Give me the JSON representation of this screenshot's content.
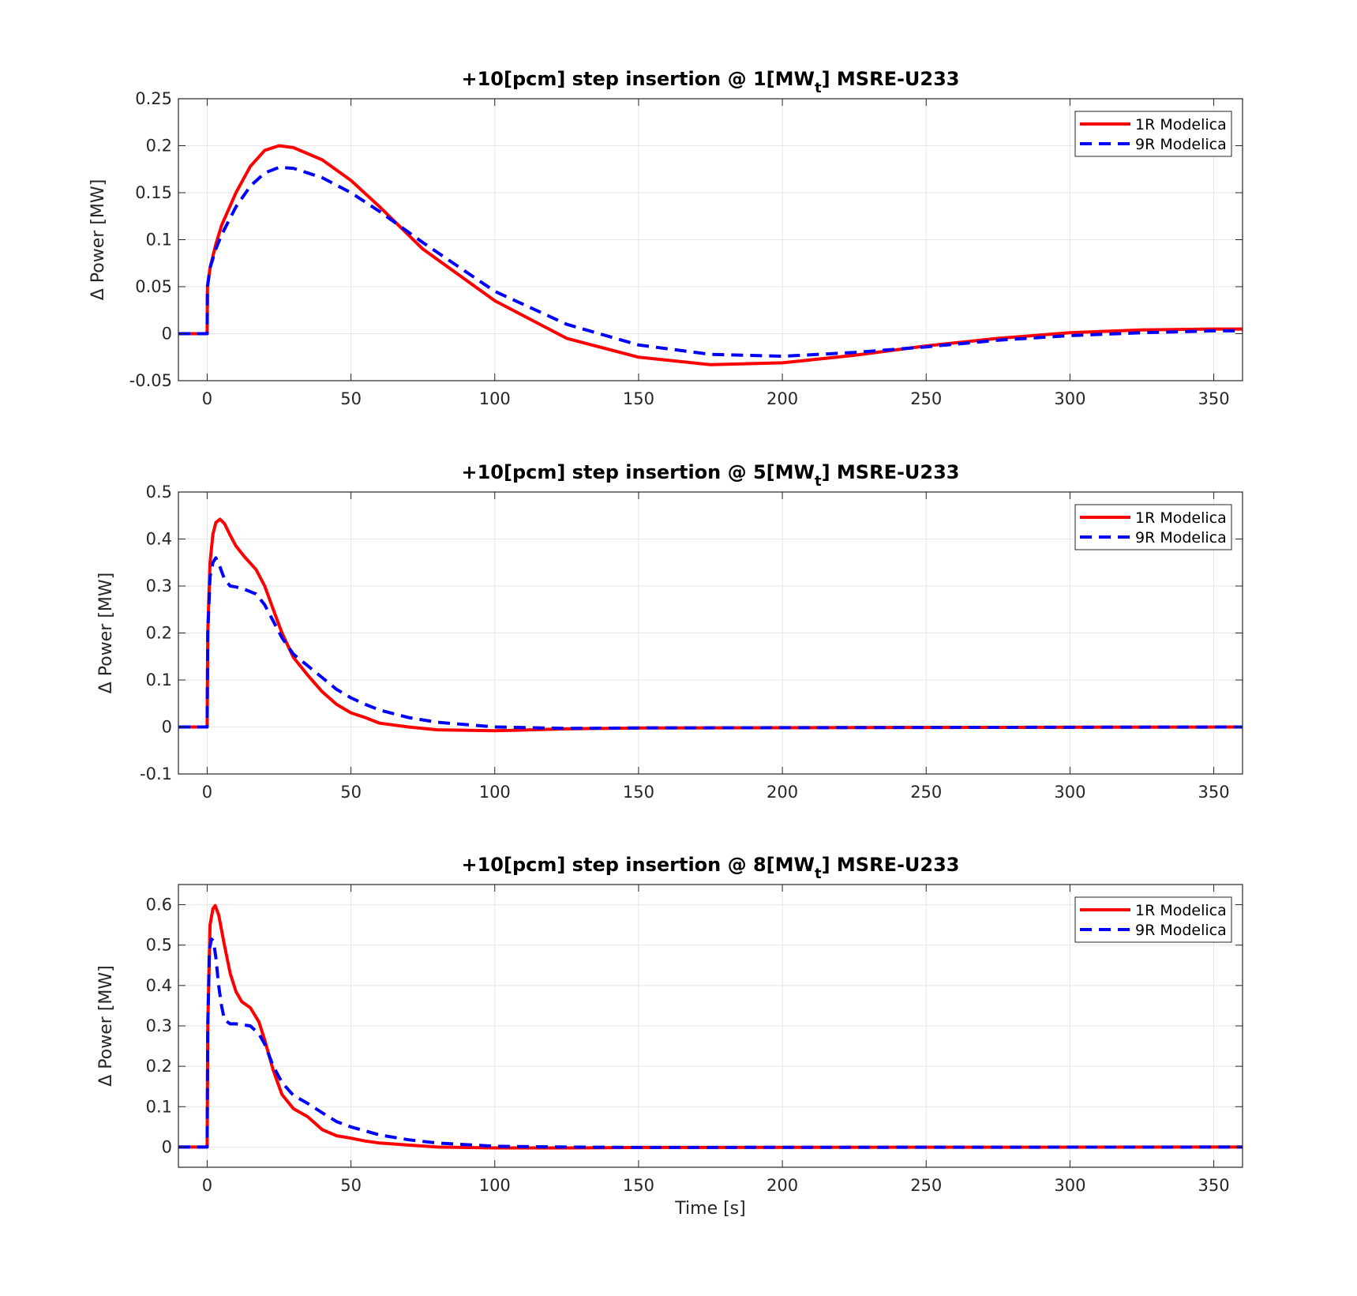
{
  "figure": {
    "xlabel": "Time [s]",
    "colors": {
      "series_1": "#ff0000",
      "series_2": "#0000ff",
      "grid": "#e6e6e6",
      "axes": "#262626"
    }
  },
  "chart_data": [
    {
      "type": "line",
      "title": "+10[pcm] step insertion @ 1[MW",
      "title_subscript": "t",
      "title_suffix": "] MSRE-U233",
      "xlabel": "",
      "ylabel": "Δ Power [MW]",
      "xlim": [
        -10,
        360
      ],
      "ylim": [
        -0.05,
        0.25
      ],
      "xticks": [
        0,
        50,
        100,
        150,
        200,
        250,
        300,
        350
      ],
      "yticks": [
        -0.05,
        0,
        0.05,
        0.1,
        0.15,
        0.2,
        0.25
      ],
      "ytick_labels": [
        "-0.05",
        "0",
        "0.05",
        "0.1",
        "0.15",
        "0.2",
        "0.25"
      ],
      "grid": true,
      "legend_position": "top-right",
      "series": [
        {
          "name": "1R Modelica",
          "color": "#ff0000",
          "style": "solid",
          "x": [
            -10,
            0,
            0.1,
            1,
            3,
            5,
            10,
            15,
            20,
            25,
            30,
            40,
            50,
            60,
            75,
            100,
            125,
            150,
            175,
            200,
            225,
            250,
            275,
            300,
            325,
            350,
            360
          ],
          "y": [
            0,
            0,
            0.05,
            0.07,
            0.095,
            0.115,
            0.15,
            0.178,
            0.195,
            0.2,
            0.198,
            0.185,
            0.163,
            0.135,
            0.09,
            0.035,
            -0.005,
            -0.025,
            -0.033,
            -0.031,
            -0.023,
            -0.013,
            -0.005,
            0.001,
            0.004,
            0.005,
            0.005
          ]
        },
        {
          "name": "9R Modelica",
          "color": "#0000ff",
          "style": "dashed",
          "x": [
            -10,
            0,
            0.1,
            1,
            3,
            5,
            10,
            15,
            20,
            25,
            30,
            40,
            50,
            60,
            75,
            100,
            125,
            150,
            175,
            200,
            225,
            250,
            275,
            300,
            325,
            350,
            360
          ],
          "y": [
            0,
            0,
            0.05,
            0.07,
            0.09,
            0.105,
            0.135,
            0.157,
            0.171,
            0.177,
            0.176,
            0.166,
            0.15,
            0.13,
            0.097,
            0.045,
            0.01,
            -0.012,
            -0.022,
            -0.024,
            -0.02,
            -0.014,
            -0.007,
            -0.002,
            0.001,
            0.003,
            0.003
          ]
        }
      ]
    },
    {
      "type": "line",
      "title": "+10[pcm] step insertion @ 5[MW",
      "title_subscript": "t",
      "title_suffix": "] MSRE-U233",
      "xlabel": "",
      "ylabel": "Δ Power [MW]",
      "xlim": [
        -10,
        360
      ],
      "ylim": [
        -0.1,
        0.5
      ],
      "xticks": [
        0,
        50,
        100,
        150,
        200,
        250,
        300,
        350
      ],
      "yticks": [
        -0.1,
        0,
        0.1,
        0.2,
        0.3,
        0.4,
        0.5
      ],
      "ytick_labels": [
        "-0.1",
        "0",
        "0.1",
        "0.2",
        "0.3",
        "0.4",
        "0.5"
      ],
      "grid": true,
      "legend_position": "top-right",
      "series": [
        {
          "name": "1R Modelica",
          "color": "#ff0000",
          "style": "solid",
          "x": [
            -10,
            0,
            0.2,
            1,
            2,
            3,
            4.5,
            6,
            8,
            10,
            13,
            17,
            20,
            23,
            26,
            30,
            35,
            40,
            45,
            50,
            55,
            60,
            70,
            80,
            100,
            125,
            150,
            360
          ],
          "y": [
            0,
            0,
            0.2,
            0.35,
            0.41,
            0.435,
            0.442,
            0.433,
            0.408,
            0.385,
            0.362,
            0.335,
            0.3,
            0.25,
            0.2,
            0.148,
            0.11,
            0.075,
            0.048,
            0.03,
            0.02,
            0.008,
            0,
            -0.006,
            -0.008,
            -0.004,
            -0.002,
            0
          ]
        },
        {
          "name": "9R Modelica",
          "color": "#0000ff",
          "style": "dashed",
          "x": [
            -10,
            0,
            0.2,
            1,
            2,
            3,
            4.5,
            6,
            8,
            10,
            13,
            17,
            20,
            23,
            26,
            30,
            35,
            40,
            45,
            50,
            55,
            60,
            70,
            80,
            100,
            125,
            150,
            360
          ],
          "y": [
            0,
            0,
            0.2,
            0.32,
            0.35,
            0.36,
            0.34,
            0.315,
            0.3,
            0.298,
            0.293,
            0.283,
            0.26,
            0.225,
            0.19,
            0.155,
            0.13,
            0.105,
            0.08,
            0.062,
            0.048,
            0.036,
            0.02,
            0.01,
            0,
            -0.003,
            -0.002,
            0
          ]
        }
      ]
    },
    {
      "type": "line",
      "title": "+10[pcm] step insertion @ 8[MW",
      "title_subscript": "t",
      "title_suffix": "] MSRE-U233",
      "xlabel": "Time [s]",
      "ylabel": "Δ Power [MW]",
      "xlim": [
        -10,
        360
      ],
      "ylim": [
        -0.05,
        0.65
      ],
      "xticks": [
        0,
        50,
        100,
        150,
        200,
        250,
        300,
        350
      ],
      "yticks": [
        0,
        0.1,
        0.2,
        0.3,
        0.4,
        0.5,
        0.6
      ],
      "ytick_labels": [
        "0",
        "0.1",
        "0.2",
        "0.3",
        "0.4",
        "0.5",
        "0.6"
      ],
      "grid": true,
      "legend_position": "top-right",
      "series": [
        {
          "name": "1R Modelica",
          "color": "#ff0000",
          "style": "solid",
          "x": [
            -10,
            0,
            0.2,
            1,
            2,
            2.8,
            4,
            6,
            8,
            10,
            12,
            15,
            18,
            20,
            23,
            26,
            30,
            35,
            40,
            45,
            50,
            55,
            60,
            70,
            80,
            100,
            125,
            150,
            360
          ],
          "y": [
            0,
            0,
            0.3,
            0.55,
            0.59,
            0.598,
            0.575,
            0.5,
            0.43,
            0.385,
            0.36,
            0.345,
            0.31,
            0.265,
            0.19,
            0.13,
            0.095,
            0.075,
            0.043,
            0.028,
            0.022,
            0.015,
            0.01,
            0.005,
            0,
            -0.002,
            -0.002,
            -0.001,
            0
          ]
        },
        {
          "name": "9R Modelica",
          "color": "#0000ff",
          "style": "dashed",
          "x": [
            -10,
            0,
            0.2,
            0.8,
            1.5,
            2.2,
            3,
            4,
            5,
            6,
            8,
            10,
            15,
            18,
            20,
            23,
            26,
            30,
            35,
            40,
            45,
            50,
            55,
            60,
            70,
            80,
            100,
            125,
            150,
            360
          ],
          "y": [
            0,
            0,
            0.3,
            0.49,
            0.515,
            0.51,
            0.47,
            0.4,
            0.35,
            0.315,
            0.305,
            0.305,
            0.3,
            0.28,
            0.255,
            0.2,
            0.16,
            0.128,
            0.108,
            0.085,
            0.063,
            0.05,
            0.04,
            0.03,
            0.018,
            0.01,
            0.002,
            0,
            -0.001,
            0
          ]
        }
      ]
    }
  ]
}
